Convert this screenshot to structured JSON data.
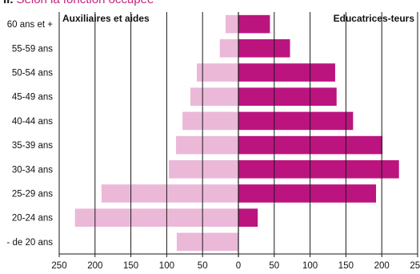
{
  "header": {
    "marker": "II.",
    "title": "Selon la fonction occupée"
  },
  "colors": {
    "left_series": "#ebb8d8",
    "right_series": "#bb147f",
    "grid": "#1a1a1a",
    "title": "#c4247a"
  },
  "chart_data": {
    "type": "bar",
    "orientation": "horizontal-pyramid",
    "categories": [
      "60 ans et +",
      "55-59 ans",
      "50-54 ans",
      "45-49 ans",
      "40-44 ans",
      "35-39 ans",
      "30-34 ans",
      "25-29 ans",
      "20-24 ans",
      "- de 20 ans"
    ],
    "series": [
      {
        "name": "Auxiliaires et aides",
        "side": "left",
        "values": [
          18,
          26,
          58,
          67,
          78,
          87,
          97,
          191,
          228,
          86
        ]
      },
      {
        "name": "Educatrices-teurs",
        "side": "right",
        "values": [
          44,
          72,
          135,
          137,
          160,
          201,
          224,
          192,
          27,
          0
        ]
      }
    ],
    "x_tick_labels": [
      "250",
      "200",
      "150",
      "100",
      "50",
      "0",
      "50",
      "100",
      "150",
      "200",
      "250"
    ],
    "xlim": [
      -250,
      250
    ],
    "grid": true,
    "legend": "top-inside"
  }
}
